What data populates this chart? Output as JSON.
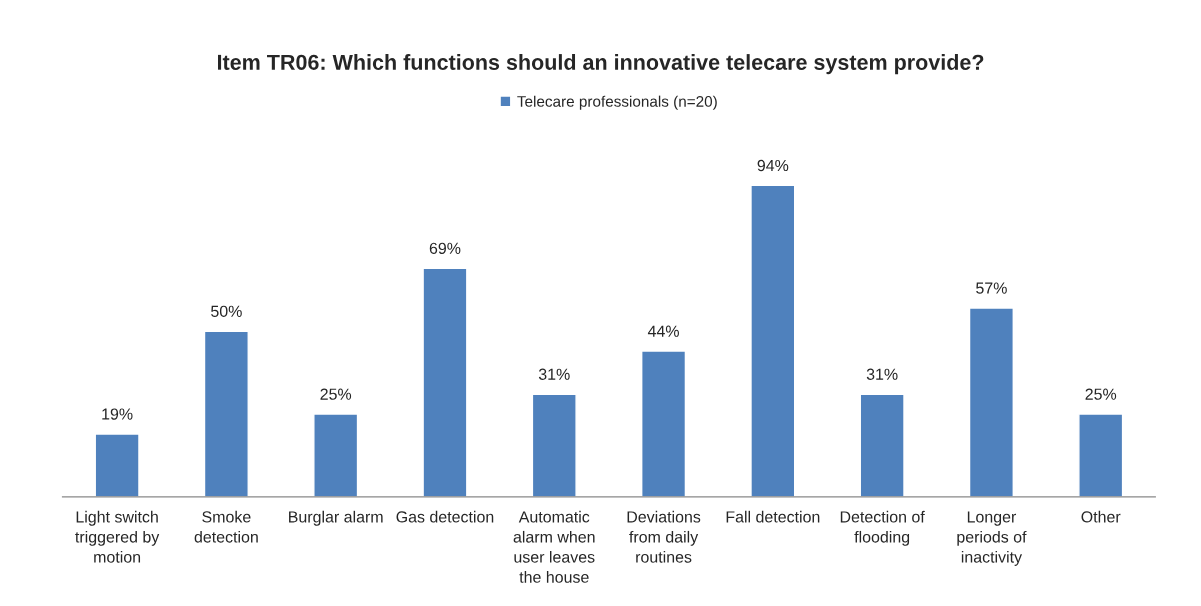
{
  "chart_data": {
    "type": "bar",
    "title": "Item TR06: Which functions should an innovative telecare system provide?",
    "categories": [
      "Light switch\ntriggered by\nmotion",
      "Smoke\ndetection",
      "Burglar alarm",
      "Gas detection",
      "Automatic\nalarm when\nuser leaves\nthe house",
      "Deviations\nfrom daily\nroutines",
      "Fall detection",
      "Detection of\nflooding",
      "Longer\nperiods of\ninactivity",
      "Other"
    ],
    "series": [
      {
        "name": "Telecare professionals (n=20)",
        "color": "#4f81bd",
        "values": [
          19,
          50,
          25,
          69,
          31,
          44,
          94,
          31,
          57,
          25
        ],
        "value_labels": [
          "19%",
          "50%",
          "25%",
          "69%",
          "31%",
          "44%",
          "94%",
          "31%",
          "57%",
          "25%"
        ]
      }
    ],
    "legend": "top",
    "grid": false
  }
}
